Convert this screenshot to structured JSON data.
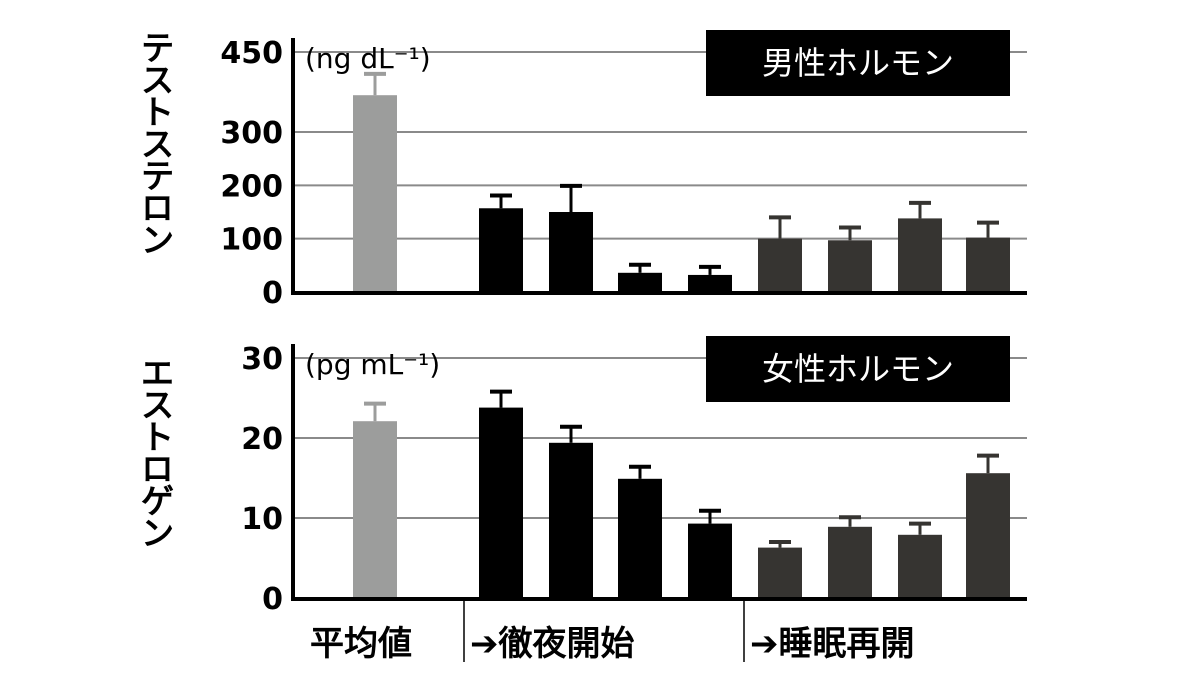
{
  "chart_data": [
    {
      "type": "bar",
      "ylabel": "テストステロン",
      "unit": "(ng dL⁻¹)",
      "badge": "男性ホルモン",
      "yticks": [
        0,
        100,
        200,
        300,
        450
      ],
      "ylim": [
        0,
        450
      ],
      "grid": true,
      "values": [
        369,
        157,
        150,
        36,
        32,
        100,
        97,
        138,
        102
      ],
      "errors": [
        40,
        24,
        49,
        15,
        15,
        40,
        24,
        29,
        28
      ],
      "groups": [
        0,
        1,
        1,
        1,
        1,
        2,
        2,
        2,
        2
      ]
    },
    {
      "type": "bar",
      "ylabel": "エストロゲン",
      "unit": "(pg mL⁻¹)",
      "badge": "女性ホルモン",
      "yticks": [
        0,
        10,
        20,
        30
      ],
      "ylim": [
        0,
        30
      ],
      "grid": true,
      "values": [
        22.1,
        23.8,
        19.4,
        14.9,
        9.3,
        6.3,
        8.9,
        7.9,
        15.6
      ],
      "errors": [
        2.2,
        2.0,
        2.0,
        1.5,
        1.6,
        0.7,
        1.2,
        1.4,
        2.2
      ],
      "groups": [
        0,
        1,
        1,
        1,
        1,
        2,
        2,
        2,
        2
      ]
    }
  ],
  "group_labels": [
    "平均値",
    "➔徹夜開始",
    "➔睡眠再開"
  ],
  "colors": {
    "group0": "#9c9d9c",
    "group1": "#000000",
    "group2": "#363431",
    "grid": "#8a8a8a"
  }
}
